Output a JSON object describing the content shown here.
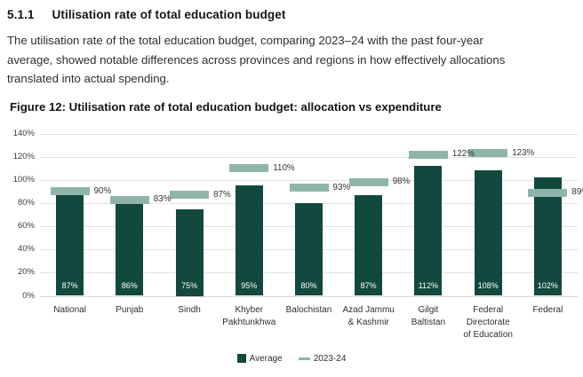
{
  "section": {
    "number": "5.1.1",
    "title": "Utilisation rate of total education budget",
    "body": "The utilisation rate of the total education budget, comparing 2023–24 with the past four-year average, showed notable differences across provinces and regions in how effectively allocations translated into actual spending."
  },
  "figure": {
    "caption": "Figure 12: Utilisation rate of total education budget: allocation vs expenditure"
  },
  "chart_data": {
    "type": "bar",
    "title": "Utilisation rate of total education budget: allocation vs expenditure",
    "categories": [
      "National",
      "Punjab",
      "Sindh",
      "Khyber Pakhtunkhwa",
      "Balochistan",
      "Azad Jammu & Kashmir",
      "Gilgit Baltistan",
      "Federal Directorate of Education",
      "Federal"
    ],
    "category_lines": [
      [
        "National"
      ],
      [
        "Punjab"
      ],
      [
        "Sindh"
      ],
      [
        "Khyber",
        "Pakhtunkhwa"
      ],
      [
        "Balochistan"
      ],
      [
        "Azad Jammu",
        "& Kashmir"
      ],
      [
        "Gilgit",
        "Baltistan"
      ],
      [
        "Federal",
        "Directorate",
        "of Education"
      ],
      [
        "Federal"
      ]
    ],
    "series": [
      {
        "name": "Average",
        "style": "bar",
        "color": "#12493f",
        "values": [
          87,
          86,
          75,
          95,
          80,
          87,
          112,
          108,
          102
        ]
      },
      {
        "name": "2023-24",
        "style": "tick",
        "color": "#8fb5aa",
        "values": [
          90,
          83,
          87,
          110,
          93,
          98,
          122,
          123,
          89
        ]
      }
    ],
    "value_suffix": "%",
    "xlabel": "",
    "ylabel": "",
    "ylim": [
      0,
      140
    ],
    "yticks": [
      0,
      20,
      40,
      60,
      80,
      100,
      120,
      140
    ],
    "ytick_suffix": "%",
    "grid": true,
    "bar_value_labels": "inside bottom, white",
    "tick_value_labels": "right of marker",
    "legend_position": "bottom"
  },
  "legend": {
    "items": [
      {
        "label": "Average",
        "color": "#12493f",
        "shape": "square"
      },
      {
        "label": "2023-24",
        "color": "#8fb5aa",
        "shape": "dash"
      }
    ]
  }
}
